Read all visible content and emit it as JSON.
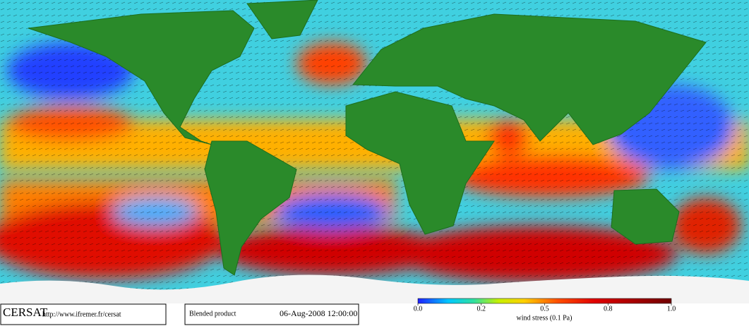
{
  "header": {
    "logo": "CERSAT",
    "url": "http://www.ifremer.fr/cersat",
    "product": "Blended product",
    "timestamp": "06-Aug-2008 12:00:00"
  },
  "colorbar": {
    "label": "wind stress (0.1 Pa)",
    "ticks": [
      {
        "value": 0,
        "label": "0.0"
      },
      0.2,
      0.5,
      0.8,
      {
        "value": 1,
        "label": "1.0"
      }
    ]
  }
}
